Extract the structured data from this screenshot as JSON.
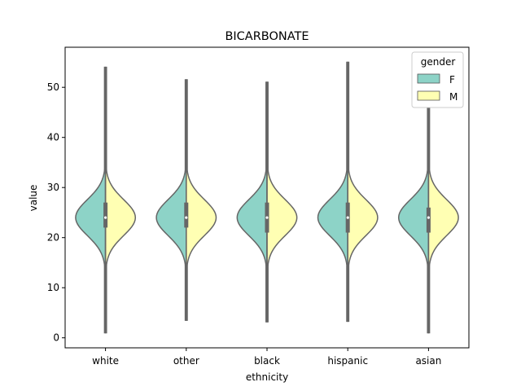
{
  "chart_data": {
    "type": "violin",
    "title": "BICARBONATE",
    "xlabel": "ethnicity",
    "ylabel": "value",
    "categories": [
      "white",
      "other",
      "black",
      "hispanic",
      "asian"
    ],
    "ylim": [
      -2,
      58
    ],
    "yticks": [
      0,
      10,
      20,
      30,
      40,
      50
    ],
    "grid": false,
    "legend": {
      "title": "gender",
      "placement": "top-right",
      "entries": [
        {
          "label": "F",
          "color": "#8dd3c7"
        },
        {
          "label": "M",
          "color": "#ffffb3"
        }
      ]
    },
    "series": [
      {
        "name": "F",
        "color": "#8dd3c7",
        "min": [
          1,
          3.5,
          3.2,
          3.3,
          1
        ],
        "max": [
          54,
          51.5,
          51,
          55,
          48
        ],
        "q1": [
          22,
          22,
          21,
          21,
          21
        ],
        "median": [
          24,
          24,
          24,
          24,
          24
        ],
        "q3": [
          27,
          27,
          27,
          27,
          26
        ]
      },
      {
        "name": "M",
        "color": "#ffffb3",
        "min": [
          1,
          3.5,
          3.2,
          3.3,
          1
        ],
        "max": [
          54,
          51.5,
          51,
          55,
          48
        ],
        "q1": [
          22,
          22,
          21,
          21,
          21
        ],
        "median": [
          24,
          24,
          24,
          24,
          24
        ],
        "q3": [
          27,
          27,
          27,
          27,
          26
        ]
      }
    ]
  }
}
